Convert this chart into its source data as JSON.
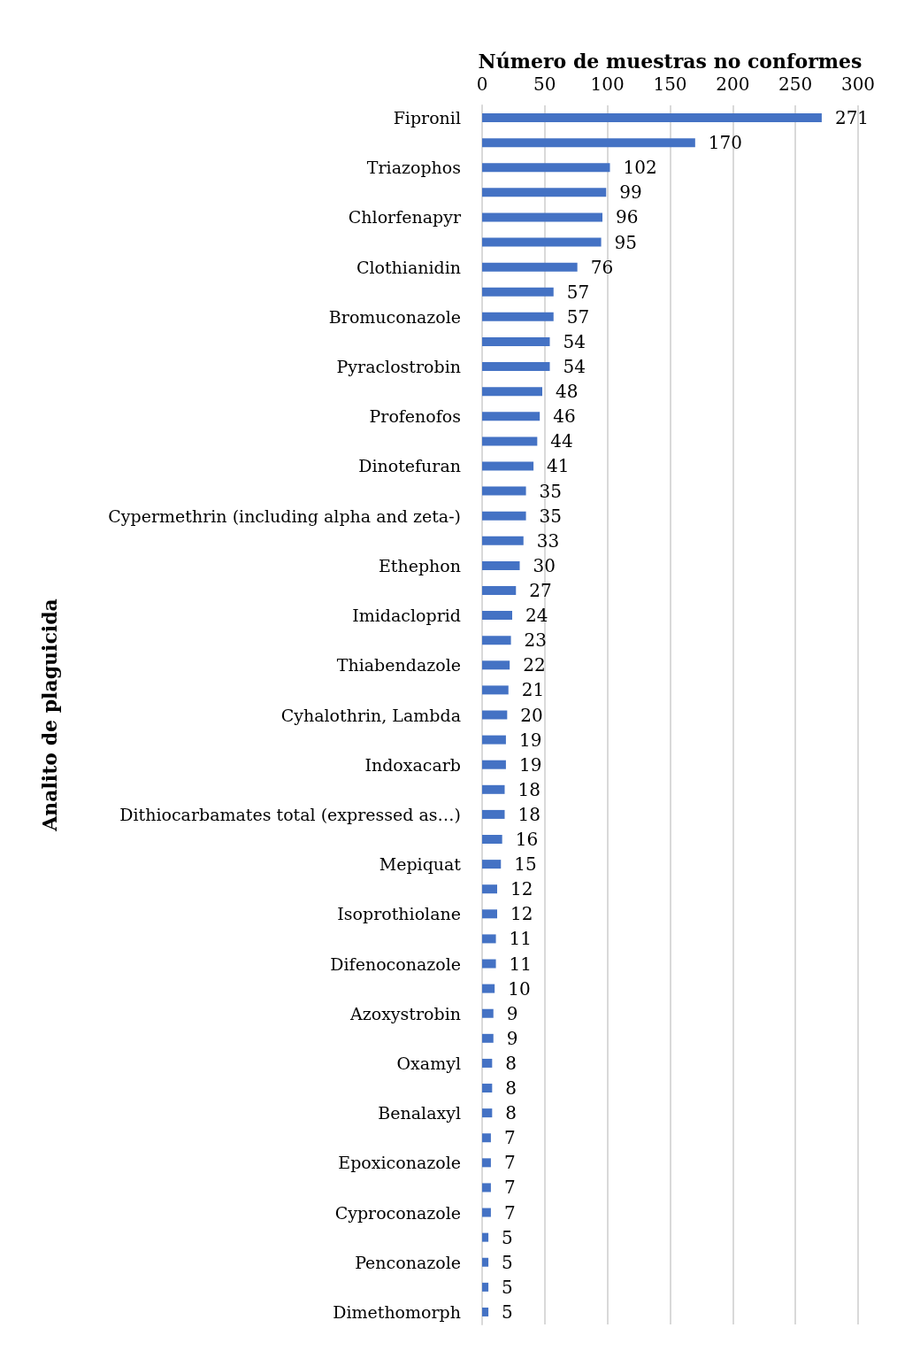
{
  "chart_data": {
    "type": "bar",
    "orientation": "horizontal",
    "xlabel": "Número de muestras no conformes",
    "ylabel": "Analito de plaguicida",
    "categories": [
      "Fipronil",
      null,
      "Triazophos",
      null,
      "Chlorfenapyr",
      null,
      "Clothianidin",
      null,
      "Bromuconazole",
      null,
      "Pyraclostrobin",
      null,
      "Profenofos",
      null,
      "Dinotefuran",
      null,
      "Cypermethrin (including alpha and zeta-)",
      null,
      "Ethephon",
      null,
      "Imidacloprid",
      null,
      "Thiabendazole",
      null,
      "Cyhalothrin, Lambda",
      null,
      "Indoxacarb",
      null,
      "Dithiocarbamates total (expressed as…)",
      null,
      "Mepiquat",
      null,
      "Isoprothiolane",
      null,
      "Difenoconazole",
      null,
      "Azoxystrobin",
      null,
      "Oxamyl",
      null,
      "Benalaxyl",
      null,
      "Epoxiconazole",
      null,
      "Cyproconazole",
      null,
      "Penconazole",
      null,
      "Dimethomorph"
    ],
    "values": [
      271,
      170,
      102,
      99,
      96,
      95,
      76,
      57,
      57,
      54,
      54,
      48,
      46,
      44,
      41,
      35,
      35,
      33,
      30,
      27,
      24,
      23,
      22,
      21,
      20,
      19,
      19,
      18,
      18,
      16,
      15,
      12,
      12,
      11,
      11,
      10,
      9,
      9,
      8,
      8,
      8,
      7,
      7,
      7,
      7,
      5,
      5,
      5,
      5
    ],
    "color": "#4472c4",
    "xlim": [
      0,
      300
    ],
    "xticks": [
      0,
      50,
      100,
      150,
      200,
      250,
      300
    ],
    "grid": "x",
    "data_labels": true
  }
}
